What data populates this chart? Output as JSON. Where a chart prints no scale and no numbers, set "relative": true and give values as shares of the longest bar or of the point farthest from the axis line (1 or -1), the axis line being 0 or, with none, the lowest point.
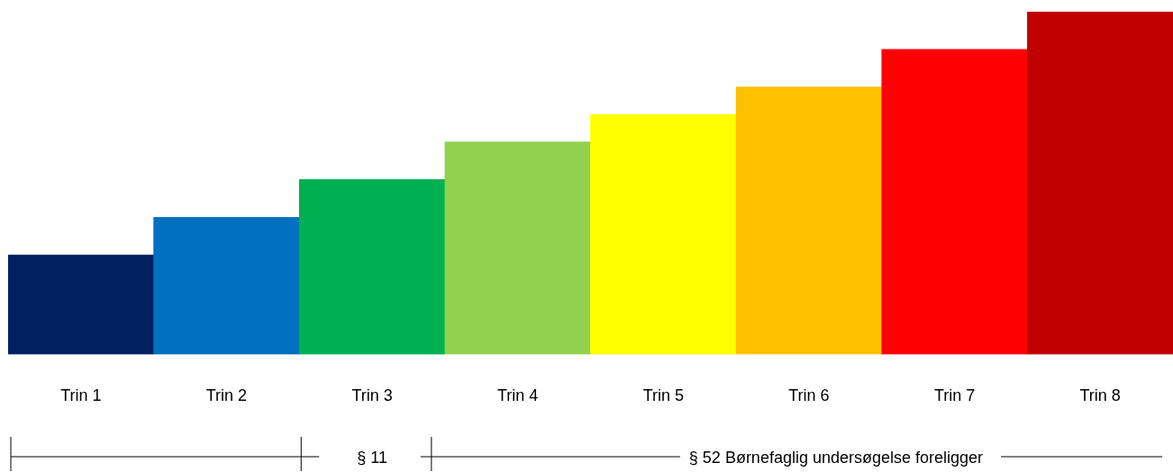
{
  "chart_data": {
    "type": "bar",
    "relative": true,
    "categories": [
      "Trin 1",
      "Trin 2",
      "Trin 3",
      "Trin 4",
      "Trin 5",
      "Trin 6",
      "Trin 7",
      "Trin 8"
    ],
    "values": [
      0.29,
      0.4,
      0.51,
      0.62,
      0.7,
      0.78,
      0.89,
      1
    ],
    "colors": [
      "#002060",
      "#0070c0",
      "#00b050",
      "#92d050",
      "#ffff00",
      "#ffc000",
      "#ff0000",
      "#c00000"
    ],
    "annotations": [
      "§ 11",
      "§ 52 Børnefaglig undersøgelse foreligger"
    ],
    "grid": false,
    "legend": false
  }
}
